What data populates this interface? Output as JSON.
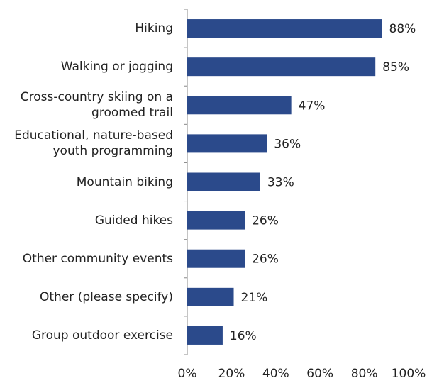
{
  "chart_data": {
    "type": "barh",
    "categories": [
      "Hiking",
      "Walking or jogging",
      "Cross-country skiing on a\ngroomed trail",
      "Educational, nature-based\nyouth programming",
      "Mountain biking",
      "Guided hikes",
      "Other community events",
      "Other (please specify)",
      "Group outdoor exercise"
    ],
    "values": [
      88,
      85,
      47,
      36,
      33,
      26,
      26,
      21,
      16
    ],
    "value_labels": [
      "88%",
      "85%",
      "47%",
      "36%",
      "33%",
      "26%",
      "26%",
      "21%",
      "16%"
    ],
    "color": "#2b4a8b",
    "xlim": [
      0,
      100
    ],
    "xticks": [
      {
        "value": 0,
        "label": "0%"
      },
      {
        "value": 20,
        "label": "20%"
      },
      {
        "value": 40,
        "label": "40%"
      },
      {
        "value": 60,
        "label": "60%"
      },
      {
        "value": 80,
        "label": "80%"
      },
      {
        "value": 100,
        "label": "100%"
      }
    ]
  }
}
